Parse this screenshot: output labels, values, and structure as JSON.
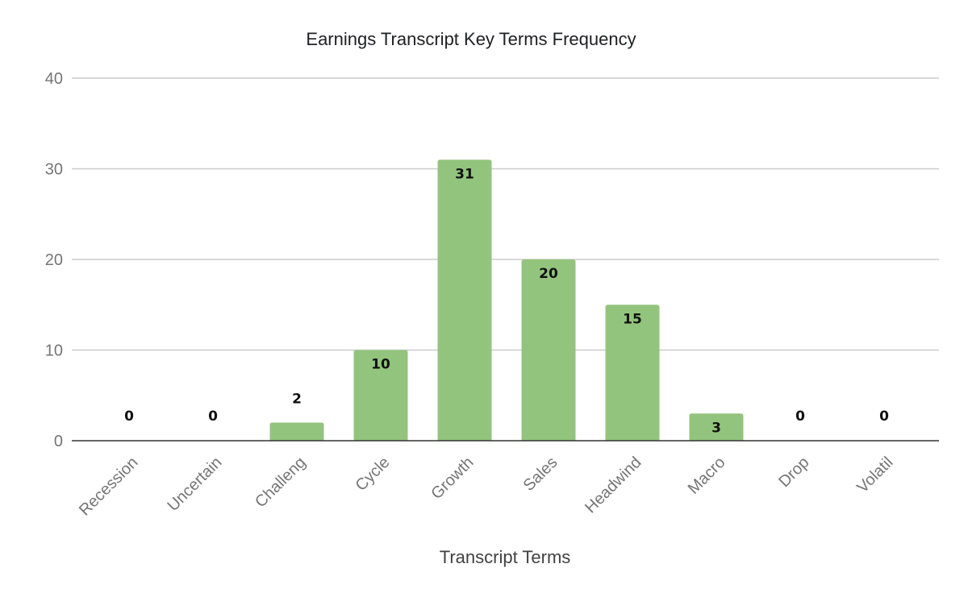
{
  "chart_data": {
    "type": "bar",
    "title": "Earnings Transcript Key Terms Frequency",
    "xlabel": "Transcript Terms",
    "ylabel": "",
    "categories": [
      "Recession",
      "Uncertain",
      "Challeng",
      "Cycle",
      "Growth",
      "Sales",
      "Headwind",
      "Macro",
      "Drop",
      "Volatil"
    ],
    "values": [
      0,
      0,
      2,
      10,
      31,
      20,
      15,
      3,
      0,
      0
    ],
    "yticks": [
      "0",
      "10",
      "20",
      "30",
      "40"
    ],
    "ylim": [
      0,
      40
    ],
    "grid": true,
    "legend": "none",
    "bar_color": "#93c47d",
    "data_labels": true
  }
}
